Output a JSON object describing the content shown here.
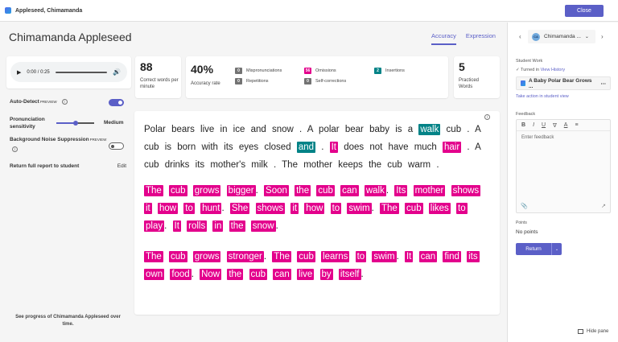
{
  "window": {
    "title": "Appleseed, Chimamanda",
    "close_label": "Close"
  },
  "header": {
    "student_name": "Chimamanda Appleseed",
    "tabs": [
      {
        "label": "Accuracy",
        "active": true
      },
      {
        "label": "Expression",
        "active": false
      }
    ]
  },
  "audio": {
    "time": "0:00 / 0:25"
  },
  "stats": {
    "correct_wpm": {
      "value": "88",
      "label": "Correct words per minute"
    },
    "accuracy": {
      "value": "40%",
      "label": "Accuracy rate"
    },
    "practiced": {
      "value": "5",
      "label": "Practiced Words"
    },
    "counts": [
      {
        "label": "Mispronunciations",
        "count": "0",
        "color": "#737373"
      },
      {
        "label": "Repetitions",
        "count": "0",
        "color": "#737373"
      },
      {
        "label": "Omissions",
        "count": "56",
        "color": "#e3008c"
      },
      {
        "label": "Self-corrections",
        "count": "0",
        "color": "#737373"
      },
      {
        "label": "Insertions",
        "count": "2",
        "color": "#038387"
      }
    ]
  },
  "settings": {
    "auto_detect": {
      "label": "Auto-Detect",
      "tag": "PREVIEW",
      "on": true
    },
    "sensitivity": {
      "label_1": "Pronunciation",
      "label_2": "sensitivity",
      "value": "Medium"
    },
    "noise": {
      "label": "Background Noise Suppression",
      "tag": "PREVIEW",
      "on": false
    },
    "return_report": {
      "label": "Return full report to student",
      "edit": "Edit"
    }
  },
  "progress_note": "See progress of Chimamanda Appleseed over time.",
  "passage": {
    "p1_words": [
      [
        "Polar",
        ""
      ],
      [
        "bears",
        ""
      ],
      [
        "live",
        ""
      ],
      [
        "in",
        ""
      ],
      [
        "ice",
        ""
      ],
      [
        "and",
        ""
      ],
      [
        "snow",
        ""
      ],
      [
        ".",
        ""
      ],
      [
        "A",
        ""
      ],
      [
        "polar",
        ""
      ],
      [
        "bear",
        ""
      ],
      [
        "baby",
        ""
      ],
      [
        "is",
        ""
      ],
      [
        "a",
        ""
      ],
      [
        "walk",
        "ins"
      ],
      [
        "cub",
        ""
      ],
      [
        ".",
        ""
      ],
      [
        "A",
        ""
      ],
      [
        "cub",
        ""
      ],
      [
        "is",
        ""
      ],
      [
        "born",
        ""
      ],
      [
        "with",
        ""
      ],
      [
        "its",
        ""
      ],
      [
        "eyes",
        ""
      ],
      [
        "closed",
        ""
      ],
      [
        "and",
        "ins"
      ],
      [
        ".",
        ""
      ],
      [
        "It",
        "om"
      ],
      [
        "does",
        ""
      ],
      [
        "not",
        ""
      ],
      [
        "have",
        ""
      ],
      [
        "much",
        ""
      ],
      [
        "hair",
        "om"
      ],
      [
        ".",
        ""
      ],
      [
        "A",
        ""
      ],
      [
        "cub",
        ""
      ],
      [
        "drinks",
        ""
      ],
      [
        "its",
        ""
      ],
      [
        "mother's",
        ""
      ],
      [
        "milk",
        ""
      ],
      [
        ".",
        ""
      ],
      [
        "The",
        ""
      ],
      [
        "mother",
        ""
      ],
      [
        "keeps",
        ""
      ],
      [
        "the",
        ""
      ],
      [
        "cub",
        ""
      ],
      [
        "warm",
        ""
      ],
      [
        ".",
        ""
      ]
    ],
    "p2_words": [
      "The",
      "cub",
      "grows",
      "bigger",
      ".",
      "Soon",
      "the",
      "cub",
      "can",
      "walk",
      ".",
      "Its",
      "mother",
      "shows",
      "it",
      "how",
      "to",
      "hunt",
      ".",
      "She",
      "shows",
      "it",
      "how",
      "to",
      "swim",
      ".",
      "The",
      "cub",
      "likes",
      "to",
      "play",
      ".",
      "It",
      "rolls",
      "in",
      "the",
      "snow",
      "."
    ],
    "p3_words": [
      "The",
      "cub",
      "grows",
      "stronger",
      ".",
      "The",
      "cub",
      "learns",
      "to",
      "swim",
      ".",
      "It",
      "can",
      "find",
      "its",
      "own",
      "food",
      ".",
      "Now",
      "the",
      "cub",
      "can",
      "live",
      "by",
      "itself",
      "."
    ]
  },
  "right_pane": {
    "student_select": {
      "initials": "CA",
      "name": "Chimamanda ..."
    },
    "student_work_label": "Student Work",
    "turned_in": "Turned in",
    "view_history": "View History",
    "file_name": "A Baby Polar Bear Grows ...",
    "take_action": "Take action in student view",
    "feedback_label": "Feedback",
    "feedback_placeholder": "Enter feedback",
    "points_label": "Points",
    "points_value": "No points",
    "return_label": "Return",
    "hide_pane": "Hide pane"
  },
  "colors": {
    "accent": "#5b5fc7",
    "omission": "#e3008c",
    "insertion": "#038387"
  }
}
